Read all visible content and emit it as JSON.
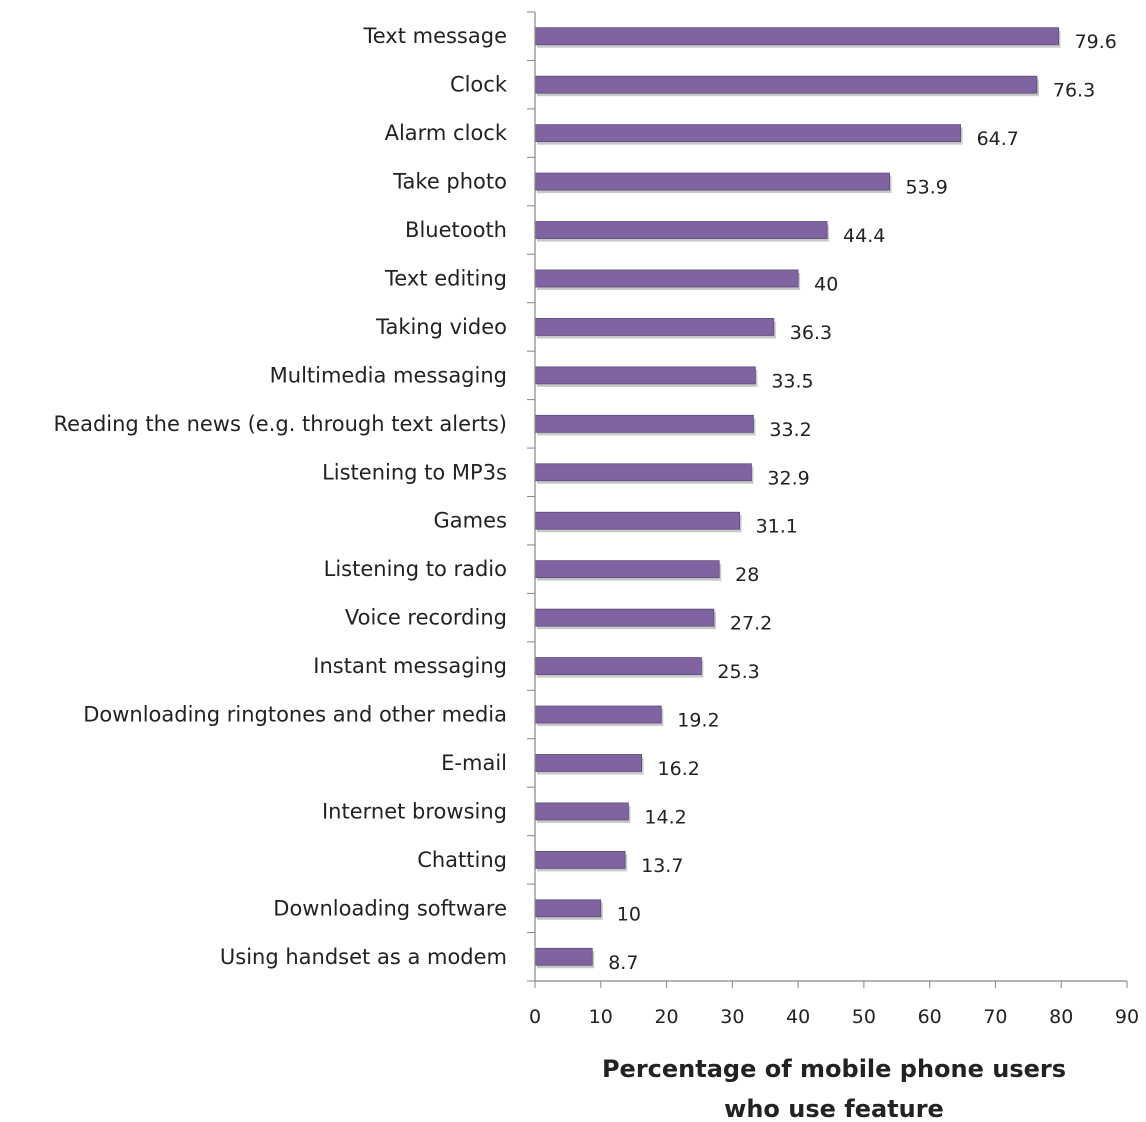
{
  "chart_data": {
    "type": "bar",
    "orientation": "horizontal",
    "categories": [
      "Text message",
      "Clock",
      "Alarm clock",
      "Take photo",
      "Bluetooth",
      "Text editing",
      "Taking video",
      "Multimedia messaging",
      "Reading the news (e.g. through text alerts)",
      "Listening to MP3s",
      "Games",
      "Listening to radio",
      "Voice recording",
      "Instant messaging",
      "Downloading ringtones and other media",
      "E-mail",
      "Internet browsing",
      "Chatting",
      "Downloading software",
      "Using handset as a modem"
    ],
    "values": [
      79.6,
      76.3,
      64.7,
      53.9,
      44.4,
      40,
      36.3,
      33.5,
      33.2,
      32.9,
      31.1,
      28,
      27.2,
      25.3,
      19.2,
      16.2,
      14.2,
      13.7,
      10,
      8.7
    ],
    "value_labels": [
      "79.6",
      "76.3",
      "64.7",
      "53.9",
      "44.4",
      "40",
      "36.3",
      "33.5",
      "33.2",
      "32.9",
      "31.1",
      "28",
      "27.2",
      "25.3",
      "19.2",
      "16.2",
      "14.2",
      "13.7",
      "10",
      "8.7"
    ],
    "xlabel_lines": [
      "Percentage of mobile phone users",
      "who use feature"
    ],
    "xlim": [
      0,
      90
    ],
    "xticks": [
      0,
      10,
      20,
      30,
      40,
      50,
      60,
      70,
      80,
      90
    ],
    "grid": false,
    "legend": "none",
    "bar_color": "#8064a2",
    "bar_border_color": "#5c4a7a",
    "shadow_color": "#c8c8c8",
    "axis_color": "#868686"
  }
}
